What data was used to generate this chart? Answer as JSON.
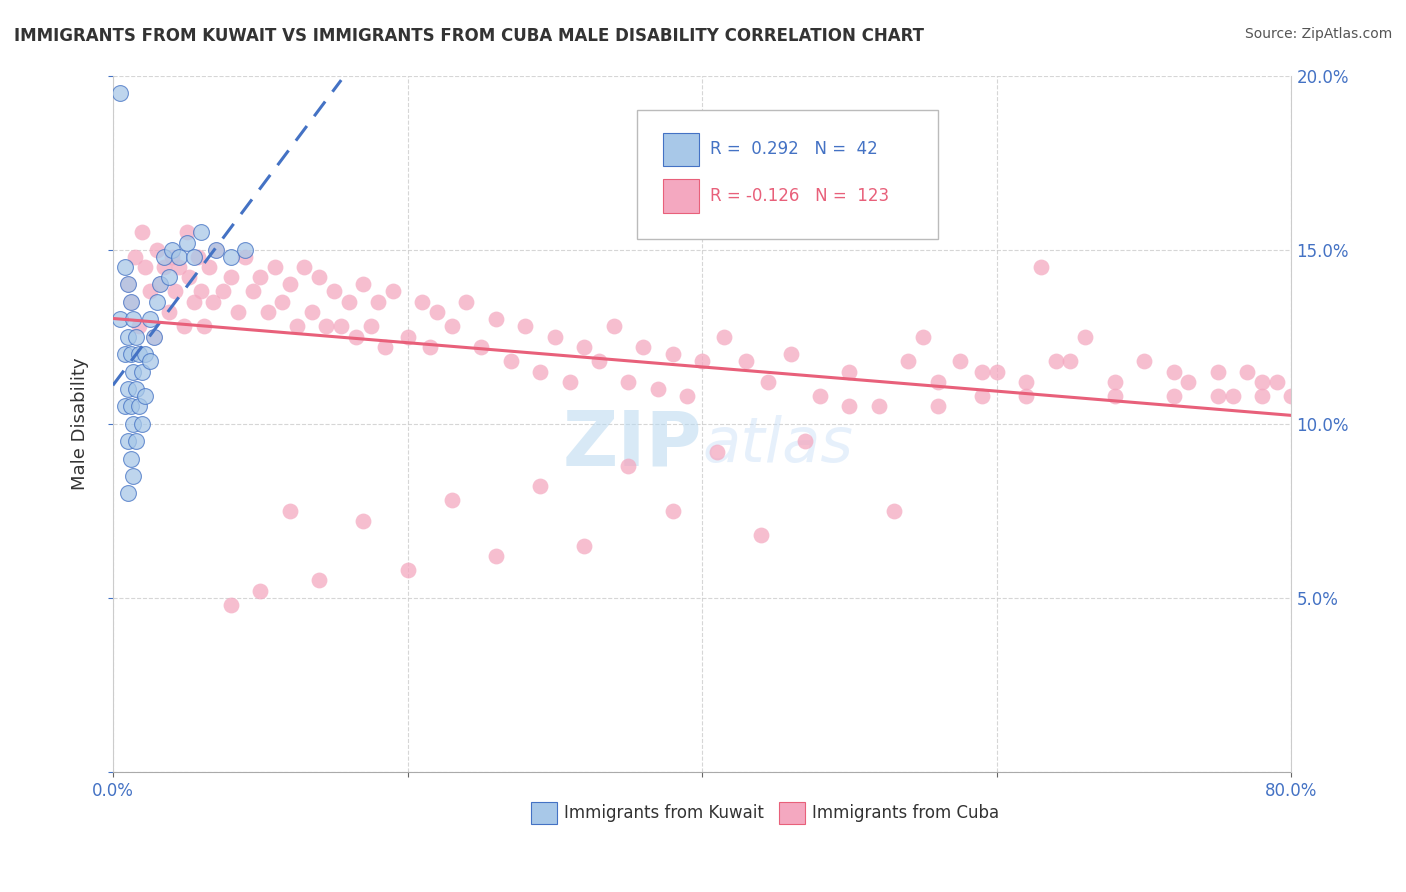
{
  "title": "IMMIGRANTS FROM KUWAIT VS IMMIGRANTS FROM CUBA MALE DISABILITY CORRELATION CHART",
  "source": "Source: ZipAtlas.com",
  "ylabel": "Male Disability",
  "xlim": [
    0.0,
    0.8
  ],
  "ylim": [
    0.0,
    0.2
  ],
  "xticks": [
    0.0,
    0.2,
    0.4,
    0.6,
    0.8
  ],
  "yticks": [
    0.0,
    0.05,
    0.1,
    0.15,
    0.2
  ],
  "xtick_labels_left": "0.0%",
  "xtick_labels_right": "80.0%",
  "ytick_labels": [
    "",
    "5.0%",
    "10.0%",
    "15.0%",
    "20.0%"
  ],
  "kuwait_R": 0.292,
  "kuwait_N": 42,
  "cuba_R": -0.126,
  "cuba_N": 123,
  "kuwait_color": "#a8c8e8",
  "cuba_color": "#f4a8c0",
  "kuwait_line_color": "#4472c4",
  "cuba_line_color": "#e8607a",
  "watermark_color": "#c8dff0",
  "watermark_text": "ZIPAtlas",
  "legend_kuwait_text": "R =  0.292   N =  42",
  "legend_cuba_text": "R = -0.126   N =  123",
  "kuwait_x": [
    0.005,
    0.005,
    0.008,
    0.008,
    0.008,
    0.01,
    0.01,
    0.01,
    0.01,
    0.01,
    0.012,
    0.012,
    0.012,
    0.012,
    0.014,
    0.014,
    0.014,
    0.014,
    0.016,
    0.016,
    0.016,
    0.018,
    0.018,
    0.02,
    0.02,
    0.022,
    0.022,
    0.025,
    0.025,
    0.028,
    0.03,
    0.032,
    0.035,
    0.038,
    0.04,
    0.045,
    0.05,
    0.055,
    0.06,
    0.07,
    0.08,
    0.09
  ],
  "kuwait_y": [
    0.195,
    0.13,
    0.145,
    0.12,
    0.105,
    0.14,
    0.125,
    0.11,
    0.095,
    0.08,
    0.135,
    0.12,
    0.105,
    0.09,
    0.13,
    0.115,
    0.1,
    0.085,
    0.125,
    0.11,
    0.095,
    0.12,
    0.105,
    0.115,
    0.1,
    0.12,
    0.108,
    0.13,
    0.118,
    0.125,
    0.135,
    0.14,
    0.148,
    0.142,
    0.15,
    0.148,
    0.152,
    0.148,
    0.155,
    0.15,
    0.148,
    0.15
  ],
  "cuba_x": [
    0.01,
    0.012,
    0.015,
    0.018,
    0.02,
    0.022,
    0.025,
    0.028,
    0.03,
    0.032,
    0.035,
    0.038,
    0.04,
    0.042,
    0.045,
    0.048,
    0.05,
    0.052,
    0.055,
    0.058,
    0.06,
    0.062,
    0.065,
    0.068,
    0.07,
    0.075,
    0.08,
    0.085,
    0.09,
    0.095,
    0.1,
    0.105,
    0.11,
    0.115,
    0.12,
    0.125,
    0.13,
    0.135,
    0.14,
    0.145,
    0.15,
    0.155,
    0.16,
    0.165,
    0.17,
    0.175,
    0.18,
    0.185,
    0.19,
    0.2,
    0.21,
    0.215,
    0.22,
    0.23,
    0.24,
    0.25,
    0.26,
    0.27,
    0.28,
    0.29,
    0.3,
    0.31,
    0.32,
    0.33,
    0.34,
    0.35,
    0.36,
    0.37,
    0.38,
    0.39,
    0.4,
    0.415,
    0.43,
    0.445,
    0.46,
    0.48,
    0.5,
    0.52,
    0.54,
    0.55,
    0.56,
    0.575,
    0.59,
    0.6,
    0.62,
    0.63,
    0.64,
    0.66,
    0.68,
    0.7,
    0.72,
    0.73,
    0.75,
    0.76,
    0.77,
    0.78,
    0.79,
    0.8,
    0.78,
    0.75,
    0.72,
    0.68,
    0.65,
    0.62,
    0.59,
    0.56,
    0.53,
    0.5,
    0.47,
    0.44,
    0.41,
    0.38,
    0.35,
    0.32,
    0.29,
    0.26,
    0.23,
    0.2,
    0.17,
    0.14,
    0.12,
    0.1,
    0.08
  ],
  "cuba_y": [
    0.14,
    0.135,
    0.148,
    0.128,
    0.155,
    0.145,
    0.138,
    0.125,
    0.15,
    0.14,
    0.145,
    0.132,
    0.148,
    0.138,
    0.145,
    0.128,
    0.155,
    0.142,
    0.135,
    0.148,
    0.138,
    0.128,
    0.145,
    0.135,
    0.15,
    0.138,
    0.142,
    0.132,
    0.148,
    0.138,
    0.142,
    0.132,
    0.145,
    0.135,
    0.14,
    0.128,
    0.145,
    0.132,
    0.142,
    0.128,
    0.138,
    0.128,
    0.135,
    0.125,
    0.14,
    0.128,
    0.135,
    0.122,
    0.138,
    0.125,
    0.135,
    0.122,
    0.132,
    0.128,
    0.135,
    0.122,
    0.13,
    0.118,
    0.128,
    0.115,
    0.125,
    0.112,
    0.122,
    0.118,
    0.128,
    0.112,
    0.122,
    0.11,
    0.12,
    0.108,
    0.118,
    0.125,
    0.118,
    0.112,
    0.12,
    0.108,
    0.115,
    0.105,
    0.118,
    0.125,
    0.112,
    0.118,
    0.108,
    0.115,
    0.112,
    0.145,
    0.118,
    0.125,
    0.112,
    0.118,
    0.108,
    0.112,
    0.115,
    0.108,
    0.115,
    0.108,
    0.112,
    0.108,
    0.112,
    0.108,
    0.115,
    0.108,
    0.118,
    0.108,
    0.115,
    0.105,
    0.075,
    0.105,
    0.095,
    0.068,
    0.092,
    0.075,
    0.088,
    0.065,
    0.082,
    0.062,
    0.078,
    0.058,
    0.072,
    0.055,
    0.075,
    0.052,
    0.048
  ]
}
